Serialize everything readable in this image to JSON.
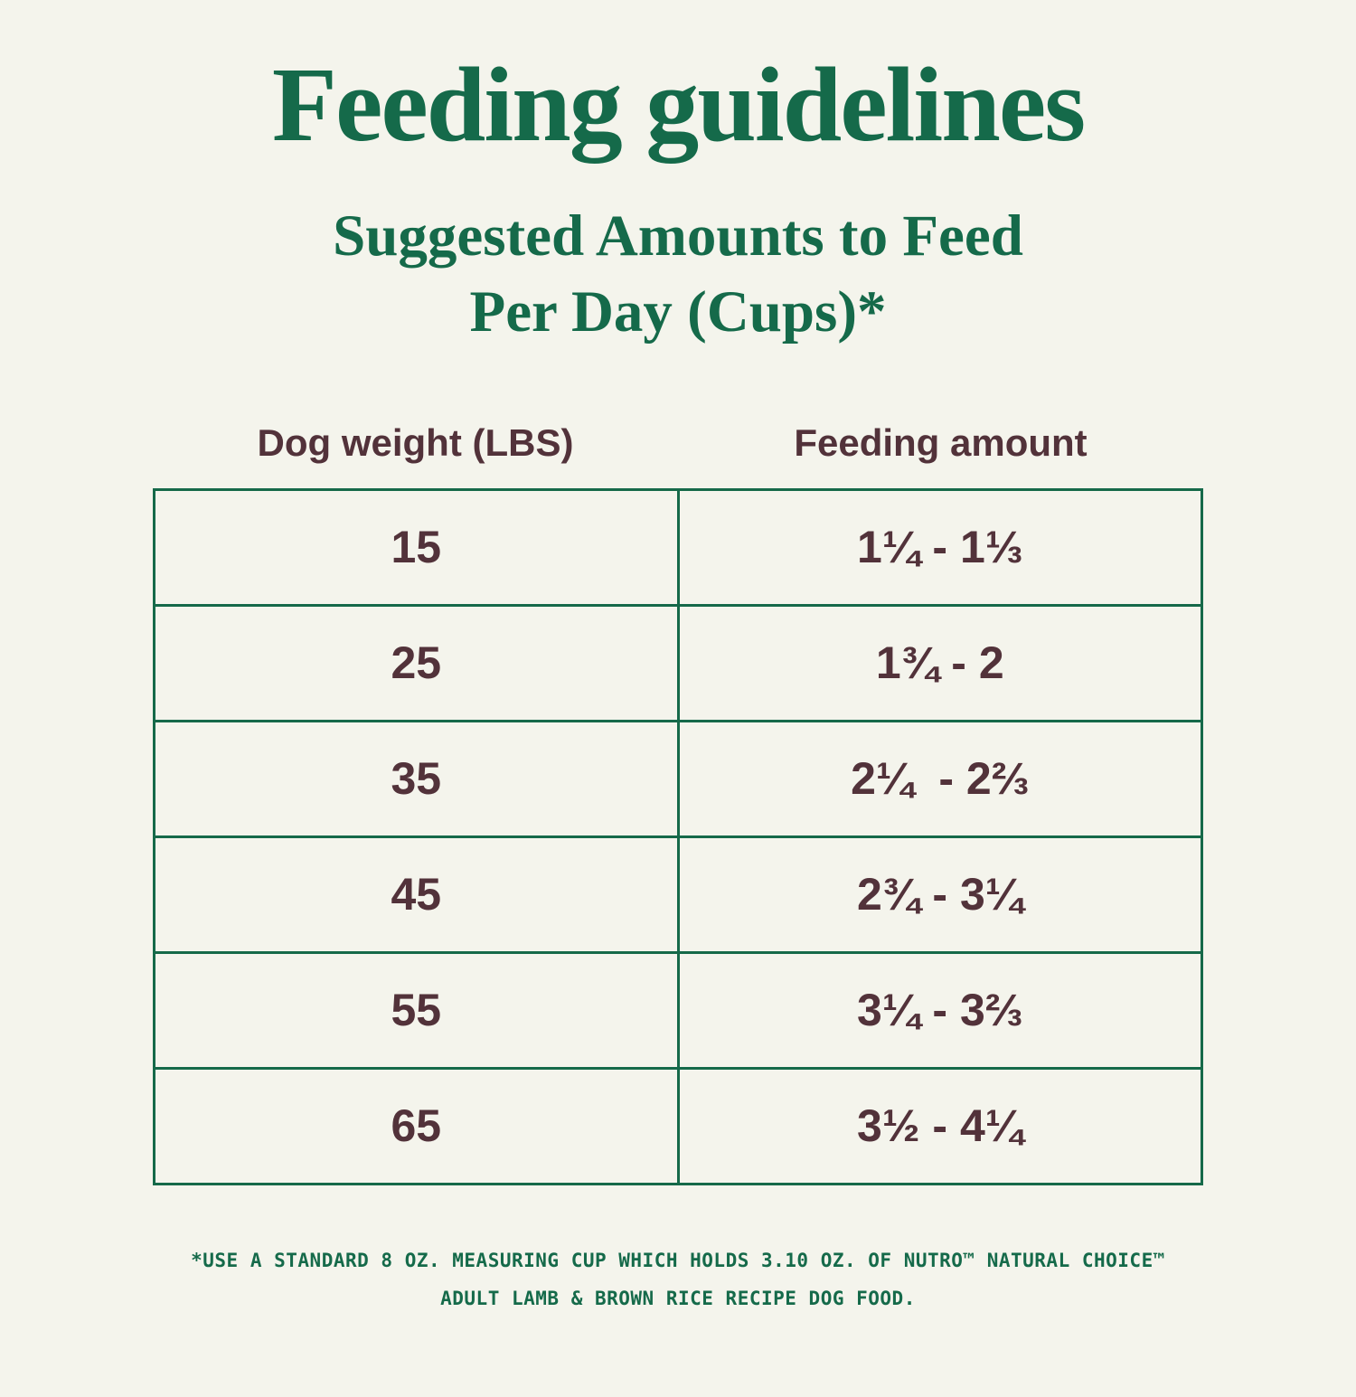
{
  "page": {
    "title": "Feeding guidelines",
    "subtitle_line1": "Suggested Amounts to Feed",
    "subtitle_line2": "Per Day (Cups)*",
    "background_color": "#f4f4ec",
    "green_color": "#156a4a",
    "brown_color": "#52323a"
  },
  "table": {
    "border_color": "#156949",
    "columns": [
      "Dog weight (LBS)",
      "Feeding amount"
    ],
    "rows": [
      {
        "weight": "15",
        "amount": "1¼ - 1⅓"
      },
      {
        "weight": "25",
        "amount": "1¾ - 2"
      },
      {
        "weight": "35",
        "amount": "2¼  - 2⅔"
      },
      {
        "weight": "45",
        "amount": "2¾ - 3¼"
      },
      {
        "weight": "55",
        "amount": "3¼ - 3⅔"
      },
      {
        "weight": "65",
        "amount": "3½ - 4¼"
      }
    ]
  },
  "footnote": {
    "line1": "*USE A STANDARD 8 OZ. MEASURING CUP WHICH HOLDS 3.10 OZ. OF NUTRO™ NATURAL CHOICE™",
    "line2": "ADULT LAMB & BROWN RICE RECIPE DOG FOOD."
  },
  "chart_data": {
    "type": "table",
    "title": "Feeding guidelines",
    "subtitle": "Suggested Amounts to Feed Per Day (Cups)*",
    "columns": [
      "Dog weight (LBS)",
      "Feeding amount"
    ],
    "rows": [
      [
        15,
        "1¼ - 1⅓"
      ],
      [
        25,
        "1¾ - 2"
      ],
      [
        35,
        "2¼ - 2⅔"
      ],
      [
        45,
        "2¾ - 3¼"
      ],
      [
        55,
        "3¼ - 3⅔"
      ],
      [
        65,
        "3½ - 4¼"
      ]
    ],
    "footnote": "*USE A STANDARD 8 OZ. MEASURING CUP WHICH HOLDS 3.10 OZ. OF NUTRO™ NATURAL CHOICE™ ADULT LAMB & BROWN RICE RECIPE DOG FOOD."
  }
}
